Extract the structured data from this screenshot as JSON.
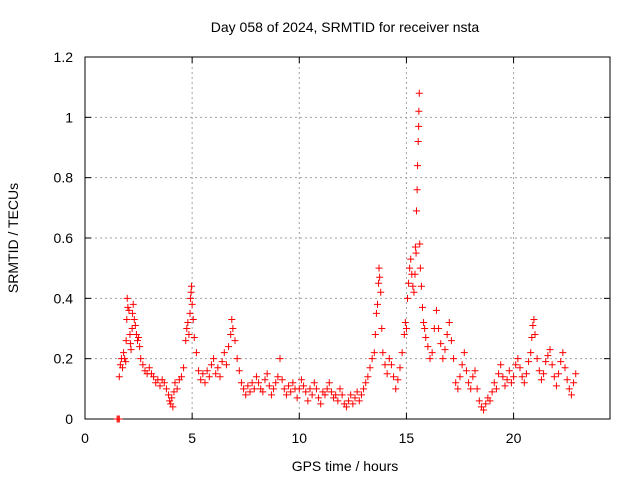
{
  "chart_data": {
    "type": "scatter",
    "title": "Day 058 of 2024, SRMTID for receiver nsta",
    "xlabel": "GPS time / hours",
    "ylabel": "SRMTID / TECUs",
    "xlim": [
      0,
      24.5
    ],
    "ylim": [
      0,
      1.2
    ],
    "xticks": [
      0,
      5,
      10,
      15,
      20
    ],
    "yticks": [
      0,
      0.2,
      0.4,
      0.6,
      0.8,
      1,
      1.2
    ],
    "xtick_labels": [
      "0",
      "5",
      "10",
      "15",
      "20"
    ],
    "ytick_labels": [
      "0",
      "0.2",
      "0.4",
      "0.6",
      "0.8",
      "1",
      "1.2"
    ],
    "grid": true,
    "marker": "+",
    "color": "#ff0000",
    "series": [
      {
        "name": "nsta",
        "points": [
          [
            1.5,
            0.0
          ],
          [
            1.55,
            0.0
          ],
          [
            1.6,
            0.0
          ],
          [
            1.6,
            0.14
          ],
          [
            1.65,
            0.18
          ],
          [
            1.7,
            0.2
          ],
          [
            1.75,
            0.17
          ],
          [
            1.8,
            0.22
          ],
          [
            1.85,
            0.2
          ],
          [
            1.9,
            0.19
          ],
          [
            1.92,
            0.26
          ],
          [
            1.95,
            0.33
          ],
          [
            1.97,
            0.4
          ],
          [
            2.0,
            0.37
          ],
          [
            2.05,
            0.36
          ],
          [
            2.1,
            0.28
          ],
          [
            2.12,
            0.25
          ],
          [
            2.15,
            0.23
          ],
          [
            2.2,
            0.3
          ],
          [
            2.22,
            0.35
          ],
          [
            2.25,
            0.38
          ],
          [
            2.3,
            0.33
          ],
          [
            2.35,
            0.31
          ],
          [
            2.4,
            0.28
          ],
          [
            2.45,
            0.26
          ],
          [
            2.5,
            0.27
          ],
          [
            2.55,
            0.24
          ],
          [
            2.6,
            0.2
          ],
          [
            2.7,
            0.18
          ],
          [
            2.8,
            0.16
          ],
          [
            2.9,
            0.15
          ],
          [
            3.0,
            0.17
          ],
          [
            3.1,
            0.15
          ],
          [
            3.2,
            0.14
          ],
          [
            3.3,
            0.12
          ],
          [
            3.4,
            0.13
          ],
          [
            3.5,
            0.11
          ],
          [
            3.6,
            0.13
          ],
          [
            3.7,
            0.12
          ],
          [
            3.8,
            0.1
          ],
          [
            3.9,
            0.08
          ],
          [
            3.95,
            0.06
          ],
          [
            4.0,
            0.05
          ],
          [
            4.05,
            0.07
          ],
          [
            4.1,
            0.04
          ],
          [
            4.15,
            0.09
          ],
          [
            4.2,
            0.12
          ],
          [
            4.3,
            0.1
          ],
          [
            4.4,
            0.13
          ],
          [
            4.5,
            0.14
          ],
          [
            4.6,
            0.17
          ],
          [
            4.7,
            0.26
          ],
          [
            4.75,
            0.3
          ],
          [
            4.8,
            0.32
          ],
          [
            4.85,
            0.28
          ],
          [
            4.9,
            0.35
          ],
          [
            4.92,
            0.4
          ],
          [
            4.95,
            0.42
          ],
          [
            4.97,
            0.44
          ],
          [
            5.0,
            0.38
          ],
          [
            5.05,
            0.33
          ],
          [
            5.1,
            0.27
          ],
          [
            5.2,
            0.22
          ],
          [
            5.3,
            0.16
          ],
          [
            5.4,
            0.13
          ],
          [
            5.5,
            0.15
          ],
          [
            5.6,
            0.12
          ],
          [
            5.7,
            0.16
          ],
          [
            5.8,
            0.14
          ],
          [
            5.9,
            0.18
          ],
          [
            6.0,
            0.2
          ],
          [
            6.1,
            0.15
          ],
          [
            6.2,
            0.17
          ],
          [
            6.3,
            0.14
          ],
          [
            6.4,
            0.19
          ],
          [
            6.5,
            0.22
          ],
          [
            6.6,
            0.18
          ],
          [
            6.7,
            0.24
          ],
          [
            6.8,
            0.28
          ],
          [
            6.85,
            0.33
          ],
          [
            6.9,
            0.3
          ],
          [
            7.0,
            0.26
          ],
          [
            7.1,
            0.2
          ],
          [
            7.2,
            0.16
          ],
          [
            7.3,
            0.12
          ],
          [
            7.4,
            0.1
          ],
          [
            7.5,
            0.08
          ],
          [
            7.6,
            0.11
          ],
          [
            7.7,
            0.09
          ],
          [
            7.8,
            0.12
          ],
          [
            7.9,
            0.1
          ],
          [
            8.0,
            0.14
          ],
          [
            8.1,
            0.12
          ],
          [
            8.2,
            0.1
          ],
          [
            8.3,
            0.09
          ],
          [
            8.4,
            0.13
          ],
          [
            8.5,
            0.15
          ],
          [
            8.6,
            0.11
          ],
          [
            8.7,
            0.08
          ],
          [
            8.8,
            0.1
          ],
          [
            8.9,
            0.12
          ],
          [
            9.0,
            0.14
          ],
          [
            9.1,
            0.2
          ],
          [
            9.2,
            0.13
          ],
          [
            9.3,
            0.1
          ],
          [
            9.4,
            0.08
          ],
          [
            9.5,
            0.11
          ],
          [
            9.6,
            0.09
          ],
          [
            9.7,
            0.12
          ],
          [
            9.8,
            0.1
          ],
          [
            9.9,
            0.07
          ],
          [
            10.0,
            0.1
          ],
          [
            10.1,
            0.13
          ],
          [
            10.2,
            0.11
          ],
          [
            10.3,
            0.09
          ],
          [
            10.4,
            0.06
          ],
          [
            10.5,
            0.1
          ],
          [
            10.6,
            0.08
          ],
          [
            10.7,
            0.12
          ],
          [
            10.8,
            0.1
          ],
          [
            10.9,
            0.07
          ],
          [
            11.0,
            0.05
          ],
          [
            11.1,
            0.09
          ],
          [
            11.2,
            0.08
          ],
          [
            11.3,
            0.1
          ],
          [
            11.4,
            0.12
          ],
          [
            11.5,
            0.09
          ],
          [
            11.6,
            0.07
          ],
          [
            11.7,
            0.08
          ],
          [
            11.8,
            0.06
          ],
          [
            11.9,
            0.1
          ],
          [
            12.0,
            0.08
          ],
          [
            12.1,
            0.05
          ],
          [
            12.2,
            0.04
          ],
          [
            12.3,
            0.06
          ],
          [
            12.4,
            0.08
          ],
          [
            12.5,
            0.05
          ],
          [
            12.6,
            0.07
          ],
          [
            12.7,
            0.09
          ],
          [
            12.8,
            0.06
          ],
          [
            12.9,
            0.08
          ],
          [
            13.0,
            0.1
          ],
          [
            13.1,
            0.12
          ],
          [
            13.2,
            0.14
          ],
          [
            13.3,
            0.17
          ],
          [
            13.4,
            0.2
          ],
          [
            13.5,
            0.22
          ],
          [
            13.55,
            0.28
          ],
          [
            13.6,
            0.35
          ],
          [
            13.65,
            0.38
          ],
          [
            13.7,
            0.45
          ],
          [
            13.72,
            0.5
          ],
          [
            13.75,
            0.47
          ],
          [
            13.8,
            0.42
          ],
          [
            13.85,
            0.3
          ],
          [
            13.9,
            0.22
          ],
          [
            14.0,
            0.18
          ],
          [
            14.1,
            0.15
          ],
          [
            14.2,
            0.2
          ],
          [
            14.3,
            0.18
          ],
          [
            14.4,
            0.14
          ],
          [
            14.5,
            0.1
          ],
          [
            14.6,
            0.13
          ],
          [
            14.7,
            0.17
          ],
          [
            14.8,
            0.22
          ],
          [
            14.9,
            0.28
          ],
          [
            14.95,
            0.32
          ],
          [
            15.0,
            0.3
          ],
          [
            15.05,
            0.4
          ],
          [
            15.1,
            0.45
          ],
          [
            15.15,
            0.5
          ],
          [
            15.2,
            0.53
          ],
          [
            15.25,
            0.48
          ],
          [
            15.3,
            0.44
          ],
          [
            15.35,
            0.42
          ],
          [
            15.4,
            0.48
          ],
          [
            15.42,
            0.57
          ],
          [
            15.45,
            0.55
          ],
          [
            15.47,
            0.69
          ],
          [
            15.5,
            0.76
          ],
          [
            15.52,
            0.84
          ],
          [
            15.55,
            0.92
          ],
          [
            15.57,
            0.97
          ],
          [
            15.58,
            1.02
          ],
          [
            15.6,
            1.08
          ],
          [
            15.62,
            0.58
          ],
          [
            15.65,
            0.5
          ],
          [
            15.7,
            0.44
          ],
          [
            15.75,
            0.37
          ],
          [
            15.8,
            0.32
          ],
          [
            15.85,
            0.3
          ],
          [
            15.9,
            0.27
          ],
          [
            16.0,
            0.24
          ],
          [
            16.1,
            0.2
          ],
          [
            16.2,
            0.22
          ],
          [
            16.3,
            0.3
          ],
          [
            16.4,
            0.36
          ],
          [
            16.5,
            0.3
          ],
          [
            16.6,
            0.25
          ],
          [
            16.7,
            0.2
          ],
          [
            16.8,
            0.23
          ],
          [
            16.9,
            0.28
          ],
          [
            17.0,
            0.32
          ],
          [
            17.1,
            0.26
          ],
          [
            17.2,
            0.2
          ],
          [
            17.3,
            0.12
          ],
          [
            17.4,
            0.1
          ],
          [
            17.5,
            0.14
          ],
          [
            17.6,
            0.18
          ],
          [
            17.7,
            0.22
          ],
          [
            17.8,
            0.16
          ],
          [
            17.9,
            0.12
          ],
          [
            18.0,
            0.1
          ],
          [
            18.1,
            0.14
          ],
          [
            18.2,
            0.16
          ],
          [
            18.3,
            0.1
          ],
          [
            18.4,
            0.06
          ],
          [
            18.5,
            0.04
          ],
          [
            18.6,
            0.03
          ],
          [
            18.7,
            0.05
          ],
          [
            18.8,
            0.07
          ],
          [
            18.9,
            0.06
          ],
          [
            19.0,
            0.09
          ],
          [
            19.1,
            0.12
          ],
          [
            19.2,
            0.1
          ],
          [
            19.3,
            0.15
          ],
          [
            19.4,
            0.18
          ],
          [
            19.5,
            0.14
          ],
          [
            19.6,
            0.11
          ],
          [
            19.7,
            0.13
          ],
          [
            19.8,
            0.16
          ],
          [
            19.9,
            0.12
          ],
          [
            20.0,
            0.14
          ],
          [
            20.1,
            0.18
          ],
          [
            20.2,
            0.2
          ],
          [
            20.3,
            0.17
          ],
          [
            20.4,
            0.14
          ],
          [
            20.5,
            0.12
          ],
          [
            20.6,
            0.15
          ],
          [
            20.7,
            0.19
          ],
          [
            20.8,
            0.22
          ],
          [
            20.85,
            0.27
          ],
          [
            20.9,
            0.31
          ],
          [
            20.95,
            0.33
          ],
          [
            21.0,
            0.28
          ],
          [
            21.1,
            0.2
          ],
          [
            21.2,
            0.16
          ],
          [
            21.3,
            0.13
          ],
          [
            21.4,
            0.15
          ],
          [
            21.5,
            0.19
          ],
          [
            21.6,
            0.21
          ],
          [
            21.7,
            0.23
          ],
          [
            21.8,
            0.18
          ],
          [
            21.9,
            0.14
          ],
          [
            22.0,
            0.11
          ],
          [
            22.1,
            0.15
          ],
          [
            22.2,
            0.19
          ],
          [
            22.3,
            0.22
          ],
          [
            22.4,
            0.17
          ],
          [
            22.5,
            0.13
          ],
          [
            22.6,
            0.1
          ],
          [
            22.7,
            0.08
          ],
          [
            22.8,
            0.12
          ],
          [
            22.9,
            0.15
          ]
        ]
      }
    ]
  }
}
